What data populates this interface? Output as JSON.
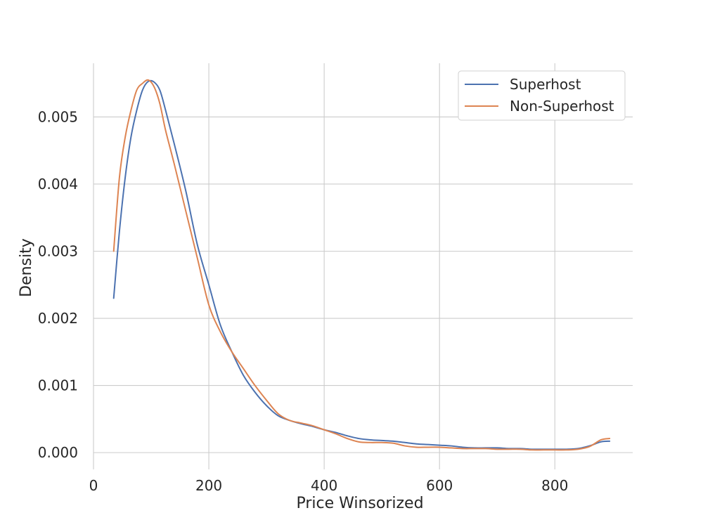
{
  "chart_data": {
    "type": "line",
    "title": "",
    "xlabel": "Price Winsorized",
    "ylabel": "Density",
    "xlim": [
      0,
      935
    ],
    "ylim": [
      -0.00025,
      0.0058
    ],
    "grid": true,
    "legend_position": "top-right",
    "x_ticks": [
      0,
      200,
      400,
      600,
      800
    ],
    "y_ticks": [
      0.0,
      0.001,
      0.002,
      0.003,
      0.004,
      0.005
    ],
    "x_tick_labels": [
      "0",
      "200",
      "400",
      "600",
      "800"
    ],
    "y_tick_labels": [
      "0.000",
      "0.001",
      "0.002",
      "0.003",
      "0.004",
      "0.005"
    ],
    "series": [
      {
        "name": "Superhost",
        "color": "#4c72b0",
        "points": [
          [
            35,
            0.0023
          ],
          [
            45,
            0.0033
          ],
          [
            55,
            0.0041
          ],
          [
            65,
            0.0047
          ],
          [
            75,
            0.0051
          ],
          [
            85,
            0.0054
          ],
          [
            95,
            0.00553
          ],
          [
            105,
            0.00552
          ],
          [
            115,
            0.0054
          ],
          [
            125,
            0.0051
          ],
          [
            140,
            0.0046
          ],
          [
            160,
            0.0039
          ],
          [
            180,
            0.0031
          ],
          [
            200,
            0.0025
          ],
          [
            220,
            0.0019
          ],
          [
            240,
            0.0015
          ],
          [
            260,
            0.00115
          ],
          [
            280,
            0.0009
          ],
          [
            300,
            0.0007
          ],
          [
            320,
            0.00055
          ],
          [
            340,
            0.00048
          ],
          [
            360,
            0.00043
          ],
          [
            380,
            0.00039
          ],
          [
            400,
            0.00034
          ],
          [
            420,
            0.0003
          ],
          [
            440,
            0.00025
          ],
          [
            460,
            0.00021
          ],
          [
            480,
            0.00019
          ],
          [
            500,
            0.00018
          ],
          [
            520,
            0.00017
          ],
          [
            540,
            0.00015
          ],
          [
            560,
            0.00013
          ],
          [
            580,
            0.00012
          ],
          [
            600,
            0.00011
          ],
          [
            620,
            0.0001
          ],
          [
            640,
            8e-05
          ],
          [
            660,
            7e-05
          ],
          [
            680,
            7e-05
          ],
          [
            700,
            7e-05
          ],
          [
            720,
            6e-05
          ],
          [
            740,
            6e-05
          ],
          [
            760,
            5e-05
          ],
          [
            780,
            5e-05
          ],
          [
            800,
            5e-05
          ],
          [
            820,
            5e-05
          ],
          [
            840,
            6e-05
          ],
          [
            860,
            0.0001
          ],
          [
            880,
            0.00016
          ],
          [
            895,
            0.00017
          ]
        ]
      },
      {
        "name": "Non-Superhost",
        "color": "#dd8452",
        "points": [
          [
            35,
            0.003
          ],
          [
            45,
            0.0041
          ],
          [
            55,
            0.0047
          ],
          [
            65,
            0.0051
          ],
          [
            75,
            0.0054
          ],
          [
            85,
            0.0055
          ],
          [
            95,
            0.00555
          ],
          [
            105,
            0.00545
          ],
          [
            115,
            0.0052
          ],
          [
            125,
            0.0048
          ],
          [
            140,
            0.0043
          ],
          [
            160,
            0.0036
          ],
          [
            180,
            0.0029
          ],
          [
            200,
            0.0022
          ],
          [
            220,
            0.0018
          ],
          [
            240,
            0.0015
          ],
          [
            260,
            0.00125
          ],
          [
            280,
            0.001
          ],
          [
            300,
            0.00078
          ],
          [
            320,
            0.00058
          ],
          [
            340,
            0.00048
          ],
          [
            360,
            0.00044
          ],
          [
            380,
            0.0004
          ],
          [
            400,
            0.00034
          ],
          [
            420,
            0.00028
          ],
          [
            440,
            0.00021
          ],
          [
            460,
            0.00016
          ],
          [
            480,
            0.00015
          ],
          [
            500,
            0.00015
          ],
          [
            520,
            0.00014
          ],
          [
            540,
            0.0001
          ],
          [
            560,
            8e-05
          ],
          [
            580,
            8e-05
          ],
          [
            600,
            8e-05
          ],
          [
            620,
            7e-05
          ],
          [
            640,
            6e-05
          ],
          [
            660,
            6e-05
          ],
          [
            680,
            6e-05
          ],
          [
            700,
            5e-05
          ],
          [
            720,
            5e-05
          ],
          [
            740,
            5e-05
          ],
          [
            760,
            4e-05
          ],
          [
            780,
            4e-05
          ],
          [
            800,
            4e-05
          ],
          [
            820,
            4e-05
          ],
          [
            840,
            5e-05
          ],
          [
            860,
            9e-05
          ],
          [
            880,
            0.00019
          ],
          [
            895,
            0.00021
          ]
        ]
      }
    ]
  }
}
